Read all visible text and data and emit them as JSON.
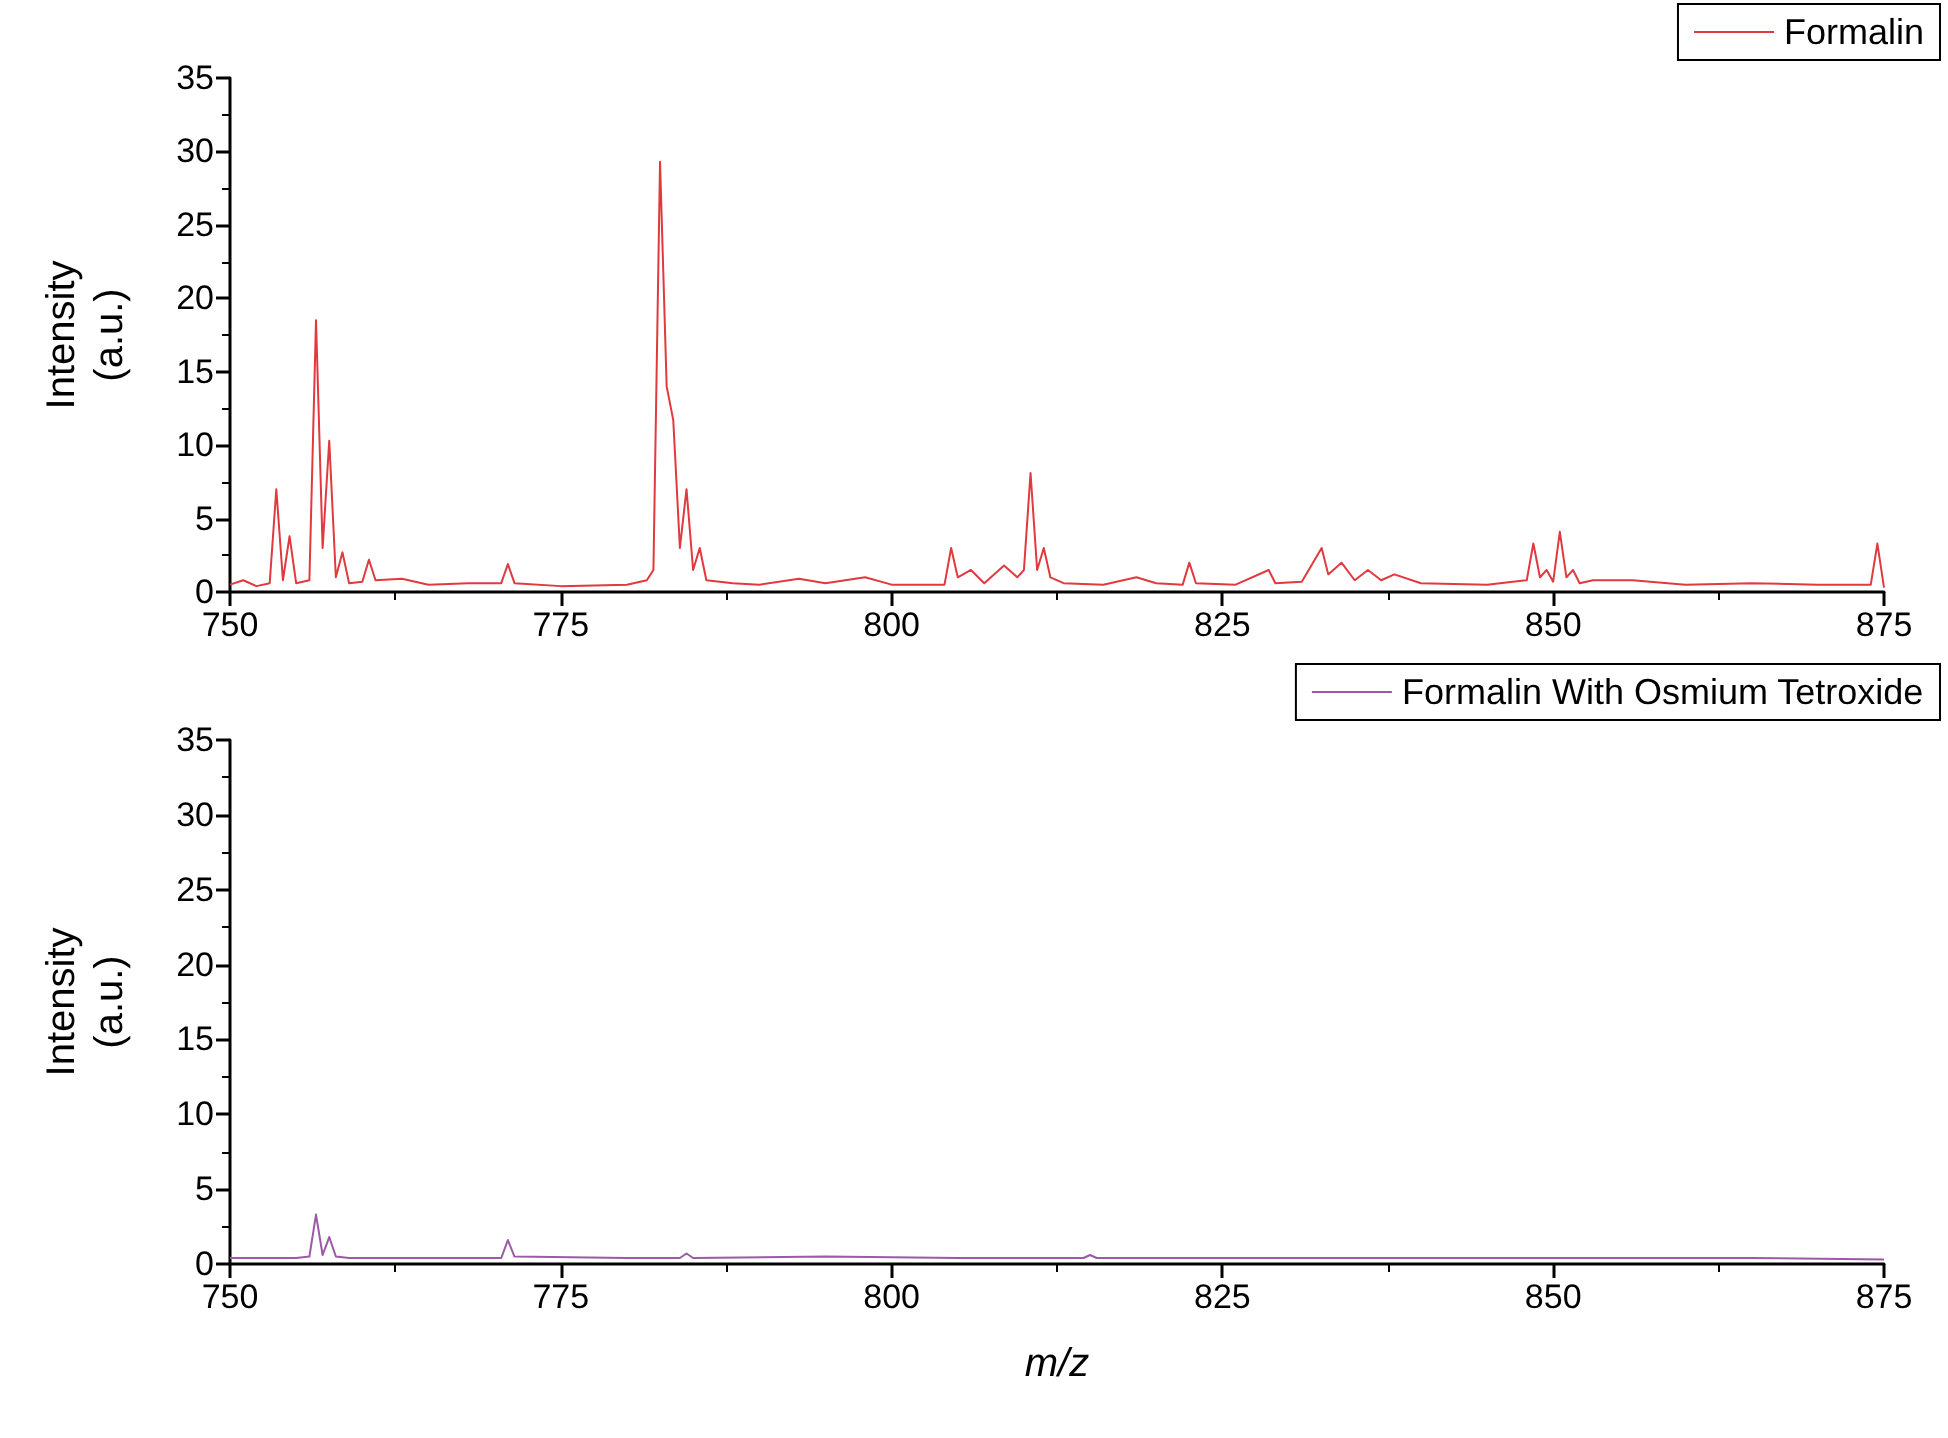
{
  "chart_data": [
    {
      "type": "line",
      "ylabel": "Intensity (a.u.)",
      "xlim": [
        750,
        875
      ],
      "xticks": [
        750,
        775,
        800,
        825,
        850,
        875
      ],
      "ylim": [
        0,
        35
      ],
      "yticks": [
        0,
        5,
        10,
        15,
        20,
        25,
        30,
        35
      ],
      "legend": "top right",
      "grid": false,
      "marker": "none",
      "line_style": "solid",
      "series": [
        {
          "name": "Formalin",
          "color": "#e0393e",
          "x": [
            750,
            751,
            752,
            753,
            753.5,
            754,
            754.5,
            755,
            756,
            756.5,
            757,
            757.5,
            758,
            758.5,
            759,
            760,
            760.5,
            761,
            763,
            765,
            768,
            770.5,
            771,
            771.5,
            775,
            780,
            781.5,
            782,
            782.5,
            783,
            783.5,
            784,
            784.5,
            785,
            785.5,
            786,
            788,
            790,
            793,
            795,
            798,
            800,
            804,
            804.5,
            805,
            806,
            807,
            808.5,
            809.5,
            810,
            810.5,
            811,
            811.5,
            812,
            813,
            816,
            818.5,
            820,
            822,
            822.5,
            823,
            826,
            828.5,
            829,
            831,
            832.5,
            833,
            834,
            835,
            836,
            837,
            838,
            840,
            845,
            848,
            848.5,
            849,
            849.5,
            850,
            850.5,
            851,
            851.5,
            852,
            853,
            856,
            860,
            865,
            870,
            874,
            874.5,
            875
          ],
          "values": [
            0.5,
            0.8,
            0.4,
            0.6,
            7,
            0.8,
            3.8,
            0.6,
            0.8,
            18.5,
            3,
            10.3,
            1,
            2.7,
            0.6,
            0.7,
            2.2,
            0.8,
            0.9,
            0.5,
            0.6,
            0.6,
            1.9,
            0.6,
            0.4,
            0.5,
            0.8,
            1.5,
            29.3,
            14,
            11.7,
            3,
            7,
            1.5,
            3,
            0.8,
            0.6,
            0.5,
            0.9,
            0.6,
            1,
            0.5,
            0.5,
            3,
            1,
            1.5,
            0.6,
            1.8,
            1,
            1.5,
            8.1,
            1.5,
            3,
            1,
            0.6,
            0.5,
            1,
            0.6,
            0.5,
            2,
            0.6,
            0.5,
            1.5,
            0.6,
            0.7,
            3,
            1.2,
            2,
            0.8,
            1.5,
            0.8,
            1.2,
            0.6,
            0.5,
            0.8,
            3.3,
            1,
            1.5,
            0.7,
            4.1,
            1,
            1.5,
            0.6,
            0.8,
            0.8,
            0.5,
            0.6,
            0.5,
            0.5,
            3.3,
            0.3
          ]
        }
      ]
    },
    {
      "type": "line",
      "xlabel": "m/z",
      "ylabel": "Intensity (a.u.)",
      "xlim": [
        750,
        875
      ],
      "xticks": [
        750,
        775,
        800,
        825,
        850,
        875
      ],
      "ylim": [
        0,
        35
      ],
      "yticks": [
        0,
        5,
        10,
        15,
        20,
        25,
        30,
        35
      ],
      "legend": "top right",
      "grid": false,
      "marker": "none",
      "line_style": "solid",
      "series": [
        {
          "name": "Formalin With Osmium Tetroxide",
          "color": "#9b59a6",
          "x": [
            750,
            755,
            756,
            756.5,
            757,
            757.5,
            758,
            759,
            765,
            770.5,
            771,
            771.5,
            780,
            784,
            784.5,
            785,
            795,
            805,
            814.5,
            815,
            815.5,
            830,
            850,
            865,
            875
          ],
          "values": [
            0.4,
            0.4,
            0.5,
            3.3,
            0.6,
            1.8,
            0.5,
            0.4,
            0.4,
            0.4,
            1.6,
            0.5,
            0.4,
            0.4,
            0.7,
            0.4,
            0.5,
            0.4,
            0.4,
            0.6,
            0.4,
            0.4,
            0.4,
            0.4,
            0.3
          ]
        }
      ]
    }
  ]
}
